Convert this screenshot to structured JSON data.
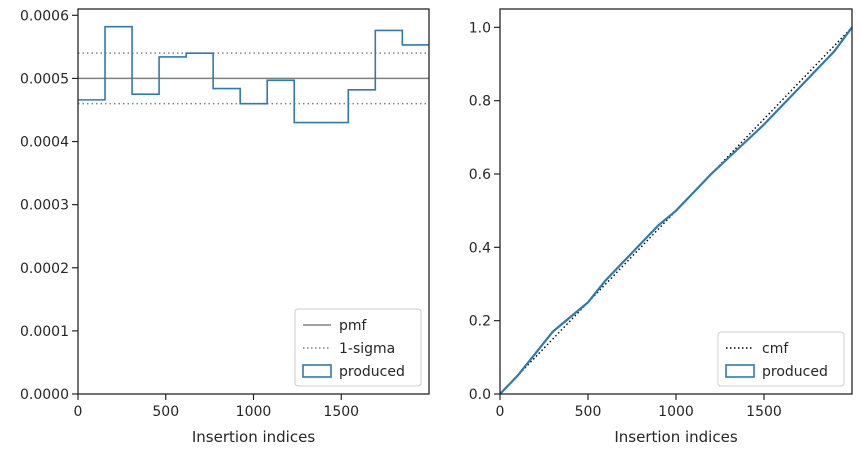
{
  "chart_data": [
    {
      "type": "step",
      "xlabel": "Insertion indices",
      "ylabel": "",
      "xlim": [
        0,
        2000
      ],
      "ylim": [
        0,
        0.00061
      ],
      "xticks": [
        0,
        500,
        1000,
        1500
      ],
      "xtick_labels": [
        "0",
        "500",
        "1000",
        "1500"
      ],
      "yticks": [
        0,
        0.0001,
        0.0002,
        0.0003,
        0.0004,
        0.0005,
        0.0006
      ],
      "ytick_labels": [
        "0.0000",
        "0.0001",
        "0.0002",
        "0.0003",
        "0.0004",
        "0.0005",
        "0.0006"
      ],
      "legend_position": "bottom-right",
      "colors": {
        "produced": "#2e7bb0",
        "reference": "#808080"
      },
      "series": [
        {
          "name": "pmf",
          "style": "solid",
          "values": [
            0.0005
          ]
        },
        {
          "name": "1-sigma",
          "style": "dotted",
          "values": [
            0.00054,
            0.00046
          ]
        },
        {
          "name": "produced",
          "style": "step",
          "bin_edges": [
            0,
            154,
            308,
            462,
            616,
            770,
            924,
            1078,
            1232,
            1386,
            1540,
            1694,
            1848,
            2000
          ],
          "values": [
            0.000466,
            0.000582,
            0.000475,
            0.000534,
            0.00054,
            0.000484,
            0.00046,
            0.000497,
            0.00043,
            0.00043,
            0.000482,
            0.000576,
            0.000553
          ]
        }
      ]
    },
    {
      "type": "line",
      "xlabel": "Insertion indices",
      "ylabel": "",
      "xlim": [
        0,
        2000
      ],
      "ylim": [
        0,
        1.05
      ],
      "xticks": [
        0,
        500,
        1000,
        1500
      ],
      "xtick_labels": [
        "0",
        "500",
        "1000",
        "1500"
      ],
      "yticks": [
        0,
        0.2,
        0.4,
        0.6,
        0.8,
        1.0
      ],
      "ytick_labels": [
        "0.0",
        "0.2",
        "0.4",
        "0.6",
        "0.8",
        "1.0"
      ],
      "legend_position": "bottom-right",
      "colors": {
        "produced": "#2e7bb0",
        "reference": "#000000"
      },
      "series": [
        {
          "name": "cmf",
          "style": "dotted",
          "x": [
            0,
            2000
          ],
          "y": [
            0,
            1.0
          ]
        },
        {
          "name": "produced",
          "style": "line",
          "x": [
            0,
            100,
            200,
            300,
            400,
            500,
            600,
            700,
            800,
            900,
            1000,
            1100,
            1200,
            1300,
            1400,
            1500,
            1600,
            1700,
            1800,
            1900,
            2000
          ],
          "y": [
            0,
            0.05,
            0.11,
            0.17,
            0.21,
            0.25,
            0.31,
            0.36,
            0.41,
            0.46,
            0.5,
            0.55,
            0.6,
            0.645,
            0.69,
            0.735,
            0.785,
            0.835,
            0.885,
            0.935,
            1.0
          ]
        }
      ]
    }
  ]
}
